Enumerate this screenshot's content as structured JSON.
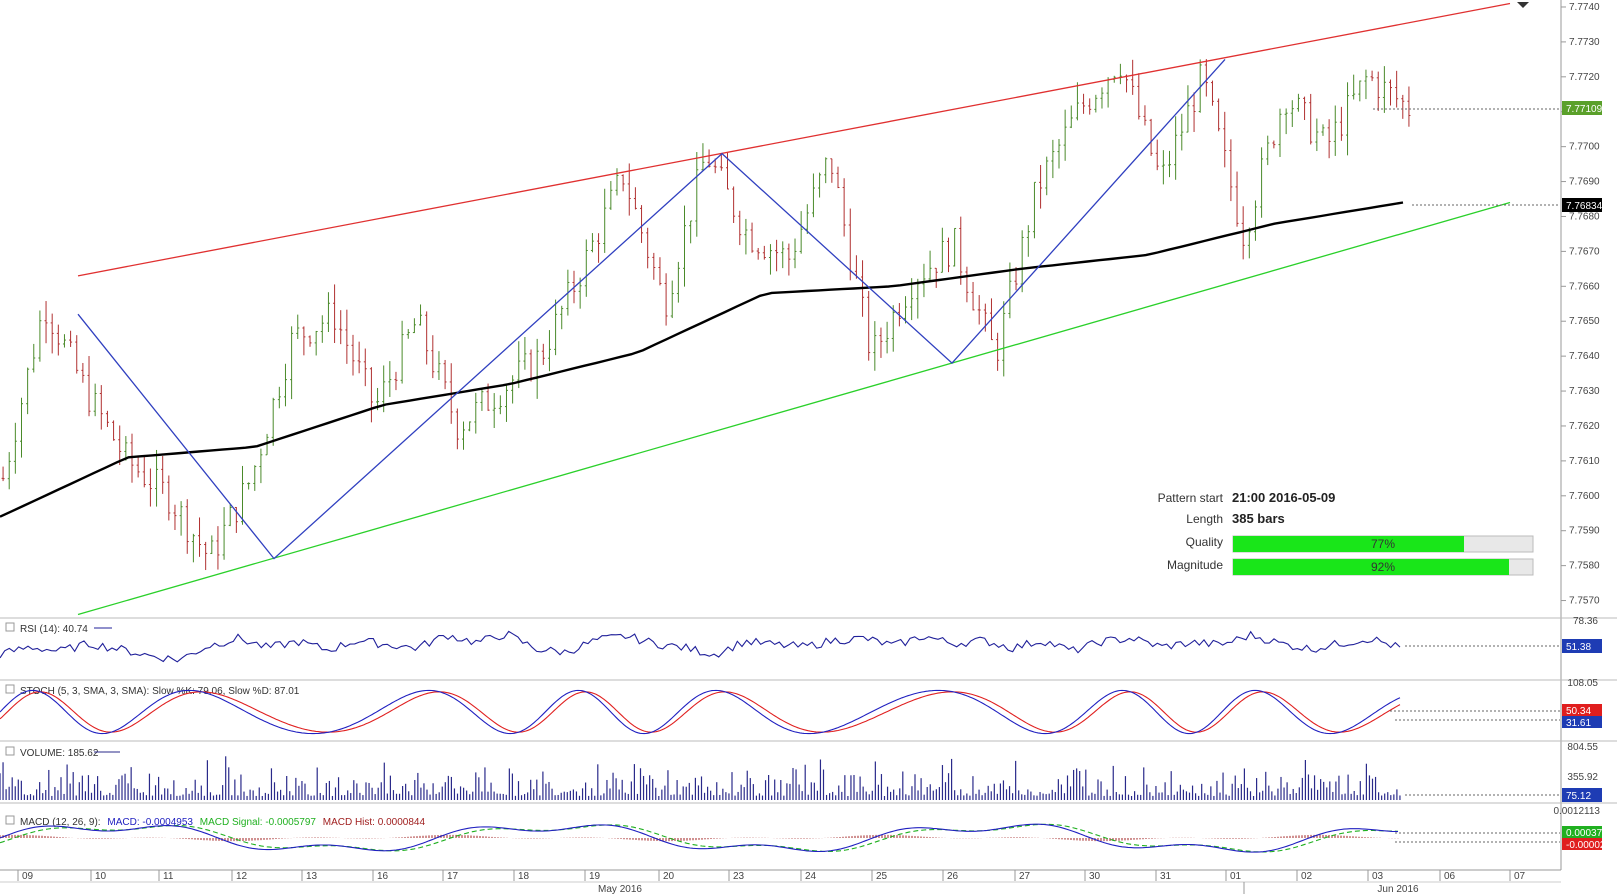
{
  "chart_data": {
    "type": "candlestick",
    "main": {
      "price_ticks": [
        "7.7740",
        "7.7730",
        "7.7720",
        "7.7710",
        "7.7700",
        "7.7690",
        "7.7680",
        "7.7670",
        "7.7660",
        "7.7650",
        "7.7640",
        "7.7630",
        "7.7620",
        "7.7610",
        "7.7600",
        "7.7590",
        "7.7580",
        "7.7570"
      ],
      "ylim": [
        7.7565,
        7.7742
      ],
      "current_price": "7.77109",
      "ma_value": "7.76834",
      "bar_count": 385,
      "price_path": [
        7.7605,
        7.7655,
        7.763,
        7.761,
        7.76,
        7.7582,
        7.7605,
        7.7645,
        7.7652,
        7.7625,
        7.765,
        7.762,
        7.763,
        7.764,
        7.7665,
        7.7692,
        7.7655,
        7.7698,
        7.7675,
        7.7668,
        7.7697,
        7.764,
        7.7662,
        7.7672,
        7.764,
        7.7688,
        7.771,
        7.7725,
        7.769,
        7.772,
        7.7675,
        7.7715,
        7.77,
        7.772,
        7.7711
      ],
      "ma_path": [
        7.7594,
        7.7611,
        7.7614,
        7.7626,
        7.7632,
        7.7641,
        7.7658,
        7.766,
        7.7665,
        7.7669,
        7.7678,
        7.7684
      ],
      "channel_upper": {
        "from": 7.7663,
        "to": 7.7741
      },
      "channel_lower": {
        "from": 7.7566,
        "to": 7.7684
      },
      "zigzag": [
        7.7652,
        7.7582,
        7.7698,
        7.7638,
        7.7725
      ]
    },
    "x_dates": [
      "09",
      "10",
      "11",
      "12",
      "13",
      "16",
      "17",
      "18",
      "19",
      "20",
      "23",
      "24",
      "25",
      "26",
      "27",
      "30",
      "31",
      "01",
      "02",
      "03",
      "06",
      "07"
    ],
    "x_months": [
      "May 2016",
      "Jun 2016"
    ],
    "pattern": {
      "start_label": "Pattern start",
      "start_value": "21:00 2016-05-09",
      "length_label": "Length",
      "length_value": "385 bars",
      "quality_label": "Quality",
      "quality_value": "77%",
      "quality": 0.77,
      "magnitude_label": "Magnitude",
      "magnitude_value": "92%",
      "magnitude": 0.92
    },
    "rsi": {
      "header": "RSI (14): 40.74",
      "tick": "78.36",
      "last": "51.38",
      "series": [
        45,
        52,
        48,
        55,
        50,
        44,
        40,
        53,
        60,
        51,
        57,
        49,
        58,
        54,
        51,
        63,
        56,
        64,
        50,
        47,
        58,
        62,
        55,
        51,
        45,
        57,
        54,
        52,
        58,
        60,
        53,
        62,
        55,
        58,
        51,
        58,
        48,
        57,
        60,
        52,
        56,
        54,
        63,
        55,
        50,
        55,
        60,
        51
      ]
    },
    "stoch": {
      "header": "STOCH (5, 3, SMA, 3, SMA): Slow %K: 79.06, Slow %D: 87.01",
      "tick": "108.05",
      "val_k": "50.34",
      "val_d": "31.61"
    },
    "volume": {
      "header": "VOLUME: 185.62",
      "tick_top": "804.55",
      "tick_mid": "355.92",
      "last": "75.12"
    },
    "macd": {
      "header_name": "MACD (12, 26, 9):",
      "header_macd": "MACD: -0.0004953",
      "header_signal": "MACD Signal: -0.0005797",
      "header_hist": "MACD Hist: 0.0000844",
      "tick": "0.0012113",
      "val_macd": "0.0003712",
      "val_hist": "-0.0000246"
    },
    "colors": {
      "candle": "#4a8a2a",
      "candle_down": "#b03030",
      "ma": "#000000",
      "upper_line": "#e03030",
      "lower_line": "#2ad02a",
      "zigzag": "#3040c0",
      "rsi": "#20209a",
      "stoch_k": "#2020c0",
      "stoch_d": "#e02020",
      "volume": "#2a2a8a",
      "macd_line": "#2020c0",
      "macd_signal": "#20b020",
      "macd_hist": "#a02020",
      "price_badge": "#5aa02a",
      "ma_badge": "#000000",
      "rsi_badge": "#1e3cb4",
      "stoch_badge_k": "#e01e1e",
      "stoch_badge_d": "#1e3cb4",
      "bar_fill": "#19e619"
    }
  }
}
